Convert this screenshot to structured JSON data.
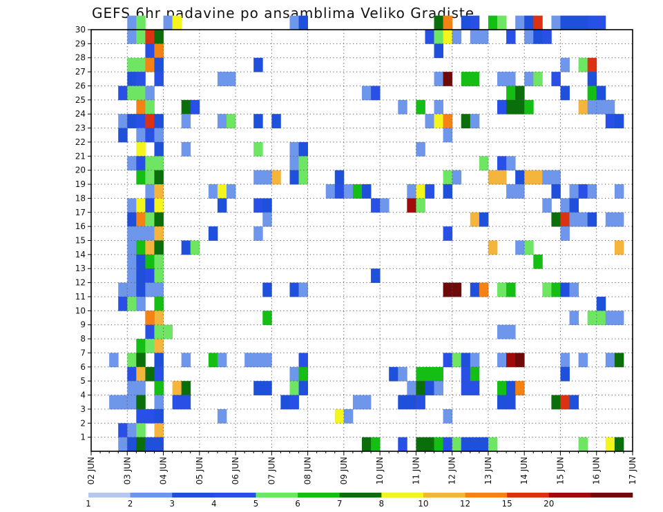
{
  "chart_data": {
    "type": "heatmap",
    "title": "GEFS 6hr padavine po ansamblima Veliko Gradiste",
    "x_tick_labels": [
      "02 JUN",
      "03 JUN",
      "04 JUN",
      "05 JUN",
      "06 JUN",
      "07 JUN",
      "08 JUN",
      "09 JUN",
      "10 JUN",
      "11 JUN",
      "12 JUN",
      "13 JUN",
      "14 JUN",
      "15 JUN",
      "16 JUN",
      "17 JUN"
    ],
    "y_tick_labels": [
      "1",
      "2",
      "3",
      "4",
      "5",
      "6",
      "7",
      "8",
      "9",
      "10",
      "11",
      "12",
      "13",
      "14",
      "15",
      "16",
      "17",
      "18",
      "19",
      "20",
      "21",
      "22",
      "23",
      "24",
      "25",
      "26",
      "27",
      "28",
      "29",
      "30"
    ],
    "x_unit": "6h step from 02 JUN 00Z",
    "x_range": [
      0,
      60
    ],
    "y_range": [
      0,
      30
    ],
    "grid": true,
    "colorbar": {
      "labels": [
        "1",
        "2",
        "3",
        "4",
        "5",
        "6",
        "7",
        "8",
        "10",
        "12",
        "15",
        "20"
      ],
      "colors": [
        "#b4c8f0",
        "#6e96eb",
        "#1e50dc",
        "#2850e6",
        "#6ee664",
        "#14be14",
        "#0a6e0a",
        "#f5f51e",
        "#f5b43c",
        "#f58214",
        "#dc3214",
        "#a00a0a",
        "#6e0a0a"
      ]
    },
    "cells": [
      [
        4,
        30,
        1
      ],
      [
        5,
        30,
        4
      ],
      [
        8,
        30,
        1
      ],
      [
        9,
        30,
        7
      ],
      [
        22,
        30,
        1
      ],
      [
        23,
        30,
        2
      ],
      [
        38,
        30,
        6
      ],
      [
        39,
        30,
        9
      ],
      [
        41,
        30,
        2
      ],
      [
        42,
        30,
        3
      ],
      [
        44,
        30,
        5
      ],
      [
        45,
        30,
        4
      ],
      [
        47,
        30,
        1
      ],
      [
        48,
        30,
        2
      ],
      [
        49,
        30,
        10
      ],
      [
        51,
        30,
        1
      ],
      [
        52,
        30,
        2
      ],
      [
        53,
        30,
        2
      ],
      [
        54,
        30,
        2
      ],
      [
        55,
        30,
        3
      ],
      [
        56,
        30,
        3
      ],
      [
        4,
        29,
        1
      ],
      [
        5,
        29,
        4
      ],
      [
        6,
        29,
        10
      ],
      [
        7,
        29,
        6
      ],
      [
        37,
        29,
        3
      ],
      [
        38,
        29,
        4
      ],
      [
        39,
        29,
        7
      ],
      [
        40,
        29,
        1
      ],
      [
        42,
        29,
        1
      ],
      [
        43,
        29,
        1
      ],
      [
        46,
        29,
        3
      ],
      [
        48,
        29,
        1
      ],
      [
        49,
        29,
        2
      ],
      [
        50,
        29,
        3
      ],
      [
        6,
        28,
        3
      ],
      [
        7,
        28,
        9
      ],
      [
        38,
        28,
        2
      ],
      [
        4,
        27,
        4
      ],
      [
        5,
        27,
        4
      ],
      [
        6,
        27,
        9
      ],
      [
        7,
        27,
        2
      ],
      [
        18,
        27,
        2
      ],
      [
        52,
        27,
        1
      ],
      [
        54,
        27,
        4
      ],
      [
        55,
        27,
        10
      ],
      [
        4,
        26,
        2
      ],
      [
        5,
        26,
        3
      ],
      [
        7,
        26,
        3
      ],
      [
        14,
        26,
        1
      ],
      [
        15,
        26,
        1
      ],
      [
        38,
        26,
        1
      ],
      [
        39,
        26,
        12
      ],
      [
        41,
        26,
        5
      ],
      [
        42,
        26,
        5
      ],
      [
        45,
        26,
        1
      ],
      [
        46,
        26,
        1
      ],
      [
        48,
        26,
        1
      ],
      [
        49,
        26,
        4
      ],
      [
        51,
        26,
        3
      ],
      [
        55,
        26,
        2
      ],
      [
        3,
        25,
        3
      ],
      [
        4,
        25,
        4
      ],
      [
        5,
        25,
        4
      ],
      [
        6,
        25,
        1
      ],
      [
        30,
        25,
        1
      ],
      [
        31,
        25,
        3
      ],
      [
        46,
        25,
        5
      ],
      [
        47,
        25,
        6
      ],
      [
        52,
        25,
        2
      ],
      [
        55,
        25,
        5
      ],
      [
        56,
        25,
        2
      ],
      [
        5,
        24,
        9
      ],
      [
        6,
        24,
        4
      ],
      [
        10,
        24,
        6
      ],
      [
        11,
        24,
        3
      ],
      [
        34,
        24,
        1
      ],
      [
        36,
        24,
        5
      ],
      [
        38,
        24,
        1
      ],
      [
        45,
        24,
        3
      ],
      [
        46,
        24,
        6
      ],
      [
        47,
        24,
        6
      ],
      [
        48,
        24,
        5
      ],
      [
        54,
        24,
        8
      ],
      [
        55,
        24,
        1
      ],
      [
        56,
        24,
        1
      ],
      [
        57,
        24,
        1
      ],
      [
        3,
        23,
        1
      ],
      [
        4,
        23,
        2
      ],
      [
        5,
        23,
        3
      ],
      [
        6,
        23,
        10
      ],
      [
        7,
        23,
        2
      ],
      [
        10,
        23,
        1
      ],
      [
        14,
        23,
        1
      ],
      [
        15,
        23,
        4
      ],
      [
        18,
        23,
        2
      ],
      [
        20,
        23,
        2
      ],
      [
        37,
        23,
        1
      ],
      [
        38,
        23,
        7
      ],
      [
        39,
        23,
        9
      ],
      [
        41,
        23,
        6
      ],
      [
        42,
        23,
        1
      ],
      [
        57,
        23,
        3
      ],
      [
        58,
        23,
        2
      ],
      [
        3,
        22,
        2
      ],
      [
        5,
        22,
        1
      ],
      [
        6,
        22,
        3
      ],
      [
        7,
        22,
        1
      ],
      [
        39,
        22,
        1
      ],
      [
        5,
        21,
        7
      ],
      [
        7,
        21,
        2
      ],
      [
        10,
        21,
        1
      ],
      [
        18,
        21,
        4
      ],
      [
        22,
        21,
        1
      ],
      [
        23,
        21,
        2
      ],
      [
        36,
        21,
        1
      ],
      [
        4,
        20,
        1
      ],
      [
        5,
        20,
        3
      ],
      [
        6,
        20,
        4
      ],
      [
        7,
        20,
        4
      ],
      [
        22,
        20,
        1
      ],
      [
        23,
        20,
        4
      ],
      [
        43,
        20,
        4
      ],
      [
        45,
        20,
        3
      ],
      [
        46,
        20,
        1
      ],
      [
        5,
        19,
        5
      ],
      [
        6,
        19,
        4
      ],
      [
        7,
        19,
        6
      ],
      [
        18,
        19,
        1
      ],
      [
        19,
        19,
        1
      ],
      [
        20,
        19,
        8
      ],
      [
        22,
        19,
        2
      ],
      [
        23,
        19,
        4
      ],
      [
        27,
        19,
        2
      ],
      [
        39,
        19,
        4
      ],
      [
        40,
        19,
        1
      ],
      [
        44,
        19,
        8
      ],
      [
        45,
        19,
        8
      ],
      [
        47,
        19,
        2
      ],
      [
        48,
        19,
        8
      ],
      [
        49,
        19,
        8
      ],
      [
        50,
        19,
        1
      ],
      [
        51,
        19,
        1
      ],
      [
        6,
        18,
        1
      ],
      [
        7,
        18,
        8
      ],
      [
        13,
        18,
        1
      ],
      [
        14,
        18,
        7
      ],
      [
        15,
        18,
        1
      ],
      [
        26,
        18,
        1
      ],
      [
        27,
        18,
        3
      ],
      [
        28,
        18,
        1
      ],
      [
        29,
        18,
        5
      ],
      [
        30,
        18,
        2
      ],
      [
        35,
        18,
        1
      ],
      [
        36,
        18,
        7
      ],
      [
        37,
        18,
        3
      ],
      [
        39,
        18,
        2
      ],
      [
        46,
        18,
        1
      ],
      [
        47,
        18,
        1
      ],
      [
        51,
        18,
        2
      ],
      [
        53,
        18,
        1
      ],
      [
        54,
        18,
        3
      ],
      [
        55,
        18,
        1
      ],
      [
        58,
        18,
        1
      ],
      [
        4,
        17,
        1
      ],
      [
        5,
        17,
        7
      ],
      [
        6,
        17,
        3
      ],
      [
        7,
        17,
        7
      ],
      [
        14,
        17,
        2
      ],
      [
        18,
        17,
        3
      ],
      [
        19,
        17,
        2
      ],
      [
        31,
        17,
        3
      ],
      [
        32,
        17,
        1
      ],
      [
        35,
        17,
        11
      ],
      [
        36,
        17,
        4
      ],
      [
        50,
        17,
        1
      ],
      [
        52,
        17,
        1
      ],
      [
        53,
        17,
        2
      ],
      [
        4,
        16,
        2
      ],
      [
        5,
        16,
        9
      ],
      [
        6,
        16,
        4
      ],
      [
        7,
        16,
        6
      ],
      [
        19,
        16,
        1
      ],
      [
        42,
        16,
        8
      ],
      [
        43,
        16,
        2
      ],
      [
        51,
        16,
        6
      ],
      [
        52,
        16,
        10
      ],
      [
        53,
        16,
        1
      ],
      [
        54,
        16,
        1
      ],
      [
        55,
        16,
        2
      ],
      [
        57,
        16,
        1
      ],
      [
        58,
        16,
        1
      ],
      [
        4,
        15,
        1
      ],
      [
        5,
        15,
        1
      ],
      [
        6,
        15,
        1
      ],
      [
        7,
        15,
        8
      ],
      [
        13,
        15,
        2
      ],
      [
        18,
        15,
        1
      ],
      [
        39,
        15,
        3
      ],
      [
        52,
        15,
        1
      ],
      [
        4,
        14,
        1
      ],
      [
        5,
        14,
        5
      ],
      [
        6,
        14,
        8
      ],
      [
        7,
        14,
        6
      ],
      [
        10,
        14,
        2
      ],
      [
        11,
        14,
        4
      ],
      [
        44,
        14,
        8
      ],
      [
        47,
        14,
        1
      ],
      [
        48,
        14,
        4
      ],
      [
        58,
        14,
        8
      ],
      [
        4,
        13,
        1
      ],
      [
        5,
        13,
        2
      ],
      [
        6,
        13,
        5
      ],
      [
        7,
        13,
        4
      ],
      [
        49,
        13,
        5
      ],
      [
        4,
        12,
        1
      ],
      [
        5,
        12,
        2
      ],
      [
        6,
        12,
        3
      ],
      [
        7,
        12,
        4
      ],
      [
        31,
        12,
        2
      ],
      [
        3,
        11,
        1
      ],
      [
        4,
        11,
        1
      ],
      [
        5,
        11,
        2
      ],
      [
        6,
        11,
        1
      ],
      [
        7,
        11,
        1
      ],
      [
        19,
        11,
        2
      ],
      [
        22,
        11,
        2
      ],
      [
        23,
        11,
        1
      ],
      [
        39,
        11,
        12
      ],
      [
        40,
        11,
        12
      ],
      [
        42,
        11,
        2
      ],
      [
        43,
        11,
        9
      ],
      [
        45,
        11,
        4
      ],
      [
        46,
        11,
        5
      ],
      [
        50,
        11,
        4
      ],
      [
        51,
        11,
        5
      ],
      [
        52,
        11,
        2
      ],
      [
        53,
        11,
        1
      ],
      [
        3,
        10,
        3
      ],
      [
        4,
        10,
        4
      ],
      [
        5,
        10,
        1
      ],
      [
        7,
        10,
        5
      ],
      [
        56,
        10,
        2
      ],
      [
        6,
        9,
        3
      ],
      [
        7,
        9,
        8
      ],
      [
        6,
        9,
        9
      ],
      [
        19,
        9,
        5
      ],
      [
        53,
        9,
        1
      ],
      [
        55,
        9,
        4
      ],
      [
        56,
        9,
        4
      ],
      [
        57,
        9,
        1
      ],
      [
        58,
        9,
        1
      ],
      [
        6,
        8,
        3
      ],
      [
        7,
        8,
        4
      ],
      [
        8,
        8,
        4
      ],
      [
        45,
        8,
        1
      ],
      [
        46,
        8,
        1
      ],
      [
        5,
        7,
        5
      ],
      [
        6,
        7,
        4
      ],
      [
        7,
        7,
        8
      ],
      [
        2,
        6,
        1
      ],
      [
        4,
        6,
        4
      ],
      [
        5,
        6,
        6
      ],
      [
        7,
        6,
        2
      ],
      [
        10,
        6,
        1
      ],
      [
        13,
        6,
        5
      ],
      [
        14,
        6,
        1
      ],
      [
        17,
        6,
        1
      ],
      [
        18,
        6,
        1
      ],
      [
        19,
        6,
        1
      ],
      [
        23,
        6,
        3
      ],
      [
        39,
        6,
        3
      ],
      [
        40,
        6,
        4
      ],
      [
        41,
        6,
        2
      ],
      [
        42,
        6,
        1
      ],
      [
        45,
        6,
        1
      ],
      [
        46,
        6,
        11
      ],
      [
        47,
        6,
        12
      ],
      [
        52,
        6,
        1
      ],
      [
        54,
        6,
        1
      ],
      [
        57,
        6,
        1
      ],
      [
        58,
        6,
        6
      ],
      [
        4,
        5,
        3
      ],
      [
        5,
        5,
        8
      ],
      [
        6,
        5,
        6
      ],
      [
        7,
        5,
        3
      ],
      [
        22,
        5,
        1
      ],
      [
        23,
        5,
        5
      ],
      [
        33,
        5,
        2
      ],
      [
        34,
        5,
        1
      ],
      [
        36,
        5,
        5
      ],
      [
        37,
        5,
        5
      ],
      [
        38,
        5,
        5
      ],
      [
        41,
        5,
        3
      ],
      [
        42,
        5,
        5
      ],
      [
        52,
        5,
        2
      ],
      [
        4,
        4,
        1
      ],
      [
        5,
        4,
        1
      ],
      [
        7,
        4,
        5
      ],
      [
        9,
        4,
        8
      ],
      [
        10,
        4,
        6
      ],
      [
        18,
        4,
        2
      ],
      [
        19,
        4,
        2
      ],
      [
        22,
        4,
        4
      ],
      [
        23,
        4,
        2
      ],
      [
        35,
        4,
        1
      ],
      [
        36,
        4,
        6
      ],
      [
        37,
        4,
        2
      ],
      [
        38,
        4,
        1
      ],
      [
        41,
        4,
        3
      ],
      [
        42,
        4,
        3
      ],
      [
        45,
        4,
        5
      ],
      [
        46,
        4,
        2
      ],
      [
        47,
        4,
        9
      ],
      [
        2,
        3,
        1
      ],
      [
        3,
        3,
        1
      ],
      [
        4,
        3,
        1
      ],
      [
        5,
        3,
        6
      ],
      [
        7,
        3,
        1
      ],
      [
        9,
        3,
        3
      ],
      [
        10,
        3,
        3
      ],
      [
        21,
        3,
        2
      ],
      [
        22,
        3,
        3
      ],
      [
        29,
        3,
        1
      ],
      [
        30,
        3,
        1
      ],
      [
        34,
        3,
        2
      ],
      [
        35,
        3,
        2
      ],
      [
        36,
        3,
        3
      ],
      [
        45,
        3,
        2
      ],
      [
        46,
        3,
        2
      ],
      [
        51,
        3,
        6
      ],
      [
        52,
        3,
        10
      ],
      [
        53,
        3,
        2
      ],
      [
        5,
        2,
        3
      ],
      [
        6,
        2,
        3
      ],
      [
        7,
        2,
        2
      ],
      [
        14,
        2,
        1
      ],
      [
        27,
        2,
        7
      ],
      [
        28,
        2,
        1
      ],
      [
        39,
        2,
        1
      ],
      [
        3,
        1,
        3
      ],
      [
        4,
        1,
        1
      ],
      [
        5,
        1,
        4
      ],
      [
        7,
        1,
        8
      ],
      [
        3,
        0,
        1
      ],
      [
        4,
        0,
        2
      ],
      [
        5,
        0,
        6
      ],
      [
        6,
        0,
        2
      ],
      [
        7,
        0,
        2
      ],
      [
        30,
        0,
        6
      ],
      [
        31,
        0,
        5
      ],
      [
        34,
        0,
        3
      ],
      [
        36,
        0,
        6
      ],
      [
        37,
        0,
        6
      ],
      [
        38,
        0,
        5
      ],
      [
        39,
        0,
        3
      ],
      [
        40,
        0,
        4
      ],
      [
        41,
        0,
        2
      ],
      [
        42,
        0,
        2
      ],
      [
        43,
        0,
        2
      ],
      [
        44,
        0,
        4
      ],
      [
        54,
        0,
        4
      ],
      [
        57,
        0,
        7
      ],
      [
        58,
        0,
        6
      ]
    ]
  }
}
